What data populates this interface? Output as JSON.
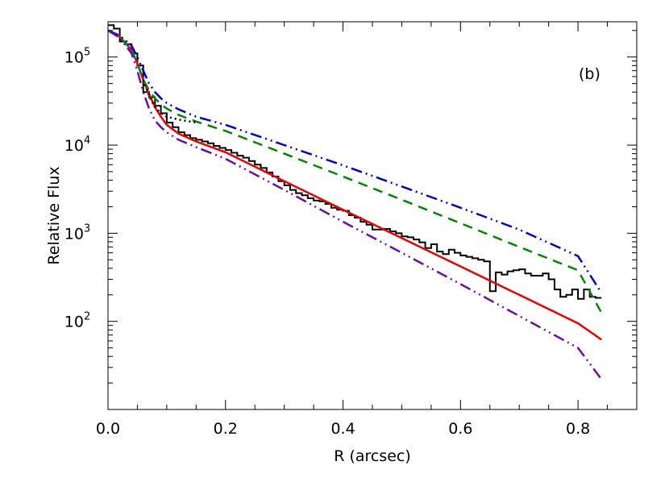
{
  "chart_data": {
    "type": "line",
    "title": "",
    "panel_label": "(b)",
    "xlabel": "R (arcsec)",
    "ylabel": "Relative Flux",
    "xlim": [
      0.0,
      0.9
    ],
    "ylim_log10": [
      1.0,
      5.4
    ],
    "yscale": "log",
    "x_ticks": [
      {
        "value": 0.0,
        "label": "0.0"
      },
      {
        "value": 0.2,
        "label": "0.2"
      },
      {
        "value": 0.4,
        "label": "0.4"
      },
      {
        "value": 0.6,
        "label": "0.6"
      },
      {
        "value": 0.8,
        "label": "0.8"
      }
    ],
    "y_ticks": [
      {
        "exp": 2,
        "base": "10",
        "sup": "2"
      },
      {
        "exp": 3,
        "base": "10",
        "sup": "3"
      },
      {
        "exp": 4,
        "base": "10",
        "sup": "4"
      },
      {
        "exp": 5,
        "base": "10",
        "sup": "5"
      }
    ],
    "grid": false,
    "legend": "none",
    "series": [
      {
        "style": "histogram",
        "color": "#000000",
        "dash": "solid",
        "x": [
          0.0,
          0.01,
          0.02,
          0.03,
          0.04,
          0.05,
          0.06,
          0.07,
          0.08,
          0.09,
          0.1,
          0.11,
          0.12,
          0.13,
          0.14,
          0.15,
          0.16,
          0.17,
          0.18,
          0.19,
          0.2,
          0.21,
          0.22,
          0.23,
          0.24,
          0.25,
          0.26,
          0.27,
          0.28,
          0.29,
          0.3,
          0.31,
          0.32,
          0.33,
          0.34,
          0.35,
          0.36,
          0.37,
          0.38,
          0.39,
          0.4,
          0.41,
          0.42,
          0.43,
          0.44,
          0.45,
          0.46,
          0.47,
          0.48,
          0.49,
          0.5,
          0.51,
          0.52,
          0.53,
          0.54,
          0.55,
          0.56,
          0.57,
          0.58,
          0.59,
          0.6,
          0.61,
          0.62,
          0.63,
          0.64,
          0.65,
          0.66,
          0.67,
          0.68,
          0.69,
          0.7,
          0.71,
          0.72,
          0.73,
          0.74,
          0.75,
          0.76,
          0.77,
          0.78,
          0.79,
          0.8,
          0.81,
          0.82,
          0.83
        ],
        "y": [
          230000,
          210000,
          150000,
          140000,
          110000,
          80000,
          40000,
          35000,
          28000,
          23000,
          18000,
          16000,
          14000,
          13000,
          12000,
          11500,
          11000,
          10500,
          9800,
          9300,
          8800,
          8200,
          7600,
          7200,
          6600,
          6000,
          5500,
          4900,
          4400,
          3900,
          3500,
          3100,
          2850,
          2700,
          2500,
          2350,
          2300,
          2150,
          1950,
          1850,
          1800,
          1600,
          1500,
          1350,
          1250,
          1100,
          1100,
          1120,
          1050,
          1000,
          920,
          900,
          850,
          790,
          680,
          750,
          620,
          580,
          650,
          600,
          560,
          540,
          520,
          500,
          480,
          220,
          360,
          340,
          370,
          380,
          390,
          350,
          330,
          330,
          350,
          300,
          230,
          190,
          200,
          230,
          180,
          230,
          190,
          185
        ]
      },
      {
        "style": "line",
        "color": "#ee0000",
        "dash": "solid",
        "x": [
          0.0,
          0.02,
          0.04,
          0.05,
          0.06,
          0.07,
          0.08,
          0.09,
          0.1,
          0.12,
          0.15,
          0.2,
          0.3,
          0.4,
          0.5,
          0.6,
          0.7,
          0.8,
          0.84
        ],
        "y": [
          200000,
          170000,
          120000,
          85000,
          55000,
          38000,
          27000,
          21000,
          17000,
          13500,
          11000,
          8300,
          3900,
          1850,
          880,
          420,
          200,
          95,
          62
        ]
      },
      {
        "style": "line",
        "color": "#008800",
        "dash": "dashed",
        "x": [
          0.0,
          0.02,
          0.04,
          0.05,
          0.06,
          0.07,
          0.08,
          0.09,
          0.1,
          0.12,
          0.15,
          0.2,
          0.3,
          0.4,
          0.5,
          0.6,
          0.7,
          0.8,
          0.84
        ],
        "y": [
          200000,
          170000,
          120000,
          85000,
          55000,
          42000,
          34000,
          29000,
          26000,
          22000,
          18500,
          14500,
          8000,
          4400,
          2400,
          1300,
          700,
          380,
          125
        ]
      },
      {
        "style": "line",
        "color": "#0000dd",
        "dash": "dash-dot-dot",
        "x": [
          0.0,
          0.02,
          0.04,
          0.05,
          0.06,
          0.07,
          0.08,
          0.09,
          0.1,
          0.12,
          0.15,
          0.2,
          0.3,
          0.4,
          0.5,
          0.6,
          0.7,
          0.8,
          0.84
        ],
        "y": [
          200000,
          175000,
          135000,
          100000,
          70000,
          50000,
          40000,
          34000,
          30000,
          25500,
          21000,
          17000,
          10000,
          5900,
          3400,
          1950,
          1100,
          550,
          210
        ]
      },
      {
        "style": "line",
        "color": "#6a0dad",
        "dash": "dash-dot-dot",
        "x": [
          0.0,
          0.02,
          0.04,
          0.05,
          0.06,
          0.07,
          0.08,
          0.09,
          0.1,
          0.12,
          0.15,
          0.2,
          0.3,
          0.4,
          0.5,
          0.6,
          0.7,
          0.8,
          0.84
        ],
        "y": [
          200000,
          165000,
          110000,
          70000,
          40000,
          26000,
          19000,
          16000,
          14000,
          11500,
          9500,
          7000,
          3100,
          1350,
          600,
          265,
          115,
          50,
          22
        ]
      },
      {
        "style": "line",
        "color": "#000000",
        "dash": "dotted",
        "x": [
          0.06,
          0.07,
          0.08,
          0.09,
          0.1,
          0.12,
          0.15
        ],
        "y": [
          55000,
          36000,
          27000,
          23000,
          21000,
          19500,
          18000
        ]
      }
    ]
  }
}
